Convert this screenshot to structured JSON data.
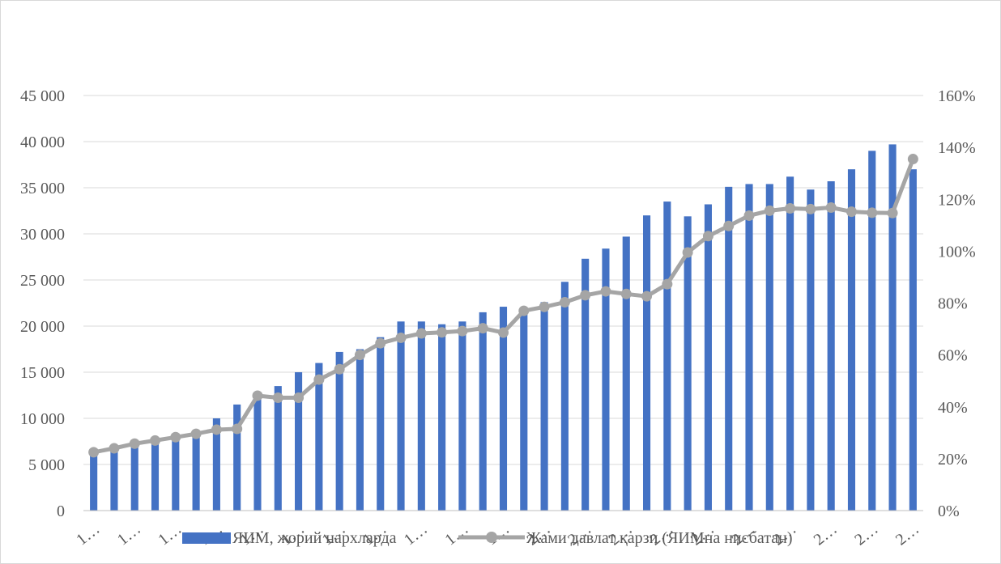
{
  "chart_data": {
    "type": "bar",
    "categories": [
      "1…",
      "1…",
      "1…",
      "1…",
      "1…",
      "1…",
      "1…",
      "1…",
      "1…",
      "1…",
      "1…",
      "1…",
      "1…",
      "1…",
      "1…",
      "1…",
      "1…",
      "1…",
      "1…",
      "1…",
      "1…",
      "2…",
      "2…",
      "2…",
      "2…",
      "2…",
      "2…",
      "2…",
      "2…",
      "2…",
      "2…",
      "2…",
      "2…",
      "2…",
      "2…",
      "2…",
      "2…",
      "2…",
      "2…",
      "2…",
      "2…"
    ],
    "visible_x_labels": [
      {
        "index": 0,
        "text": "1…"
      },
      {
        "index": 2,
        "text": "1…"
      },
      {
        "index": 4,
        "text": "1…"
      },
      {
        "index": 6,
        "text": "1…"
      },
      {
        "index": 8,
        "text": "1…"
      },
      {
        "index": 10,
        "text": "1…"
      },
      {
        "index": 12,
        "text": "1…"
      },
      {
        "index": 14,
        "text": "1…"
      },
      {
        "index": 16,
        "text": "1…"
      },
      {
        "index": 18,
        "text": "1…"
      },
      {
        "index": 20,
        "text": "1…"
      },
      {
        "index": 22,
        "text": "2…"
      },
      {
        "index": 24,
        "text": "2…"
      },
      {
        "index": 26,
        "text": "2…"
      },
      {
        "index": 28,
        "text": "2…"
      },
      {
        "index": 30,
        "text": "2…"
      },
      {
        "index": 32,
        "text": "2…"
      },
      {
        "index": 34,
        "text": "2…"
      },
      {
        "index": 36,
        "text": "2…"
      },
      {
        "index": 38,
        "text": "2…"
      },
      {
        "index": 40,
        "text": "2…"
      }
    ],
    "series": [
      {
        "name": "ЯИМ, жорий нархларда",
        "type": "bar",
        "axis": "left",
        "color": "#4472c4",
        "values": [
          6000,
          6400,
          7000,
          7500,
          7900,
          8600,
          10000,
          11500,
          12800,
          13500,
          15000,
          16000,
          17200,
          17500,
          18800,
          20500,
          20500,
          20200,
          20500,
          21500,
          22100,
          21800,
          22600,
          24800,
          27300,
          28400,
          29700,
          32000,
          33500,
          31900,
          33200,
          35100,
          35400,
          35400,
          36200,
          34800,
          35700,
          37000,
          39000,
          39700,
          37000
        ]
      },
      {
        "name": "Жами давлат қарзи (ЯИМна нисбатан)",
        "type": "line",
        "axis": "right",
        "color": "#a5a5a5",
        "values": [
          22.5,
          24,
          25.8,
          27,
          28.3,
          29.6,
          31.2,
          31.5,
          44.3,
          43.5,
          43.5,
          50.5,
          54.5,
          60,
          64.5,
          66.6,
          68.3,
          68.7,
          69.2,
          70.3,
          68.6,
          77,
          78.5,
          80.3,
          83,
          84.5,
          83.5,
          82.6,
          87.3,
          99.5,
          105.8,
          109.7,
          113.7,
          115.6,
          116.5,
          116.2,
          116.8,
          115.2,
          114.8,
          114.7,
          135.5
        ]
      }
    ],
    "y_left": {
      "ticks": [
        "0",
        "5 000",
        "10 000",
        "15 000",
        "20 000",
        "25 000",
        "30 000",
        "35 000",
        "40 000",
        "45 000"
      ],
      "ylim": [
        0,
        45000
      ]
    },
    "y_right": {
      "ticks": [
        "0%",
        "20%",
        "40%",
        "60%",
        "80%",
        "100%",
        "120%",
        "140%",
        "160%"
      ],
      "ylim": [
        0,
        160
      ]
    },
    "grid": true,
    "legend_position": "bottom",
    "colors": {
      "bar": "#4472c4",
      "line": "#a5a5a5",
      "grid": "#d9d9d9",
      "axis": "#bfbfbf",
      "text": "#595959"
    }
  }
}
